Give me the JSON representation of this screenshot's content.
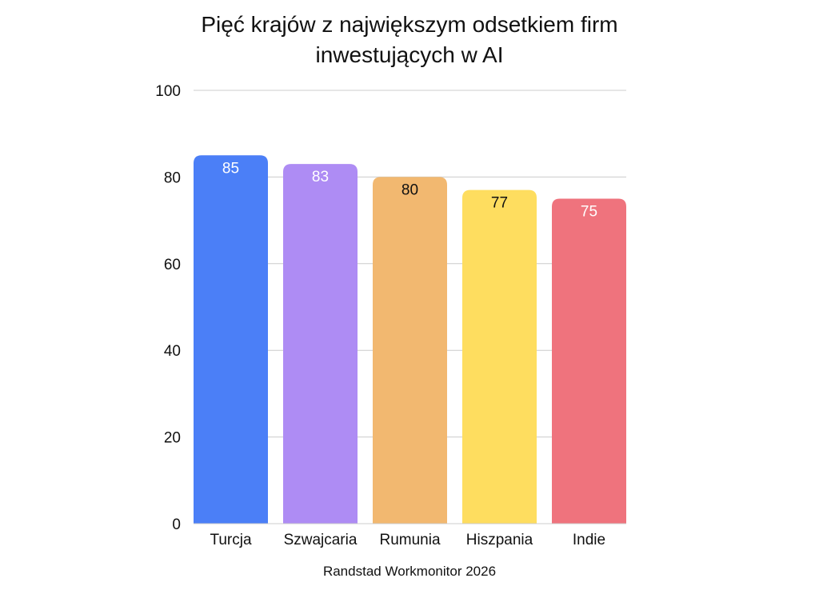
{
  "chart_data": {
    "type": "bar",
    "title_lines": [
      "Pięć krajów z największym odsetkiem firm",
      "inwestujących w AI"
    ],
    "categories": [
      "Turcja",
      "Szwajcaria",
      "Rumunia",
      "Hiszpania",
      "Indie"
    ],
    "values": [
      85,
      83,
      80,
      77,
      75
    ],
    "data_labels": [
      "85",
      "83",
      "80",
      "77",
      "75"
    ],
    "bar_colors": [
      "#4b7ff7",
      "#ae8cf4",
      "#f2b870",
      "#fedd5f",
      "#ef737d"
    ],
    "label_colors": [
      "#ffffff",
      "#ffffff",
      "#111111",
      "#111111",
      "#ffffff"
    ],
    "yticks": [
      0,
      20,
      40,
      60,
      80,
      100
    ],
    "ytick_labels": [
      "0",
      "20",
      "40",
      "60",
      "80",
      "100"
    ],
    "ylim": [
      0,
      100
    ],
    "grid": true,
    "gridline_color": "#cccccc",
    "source": "Randstad Workmonitor 2026",
    "xlabel": "",
    "ylabel": ""
  }
}
